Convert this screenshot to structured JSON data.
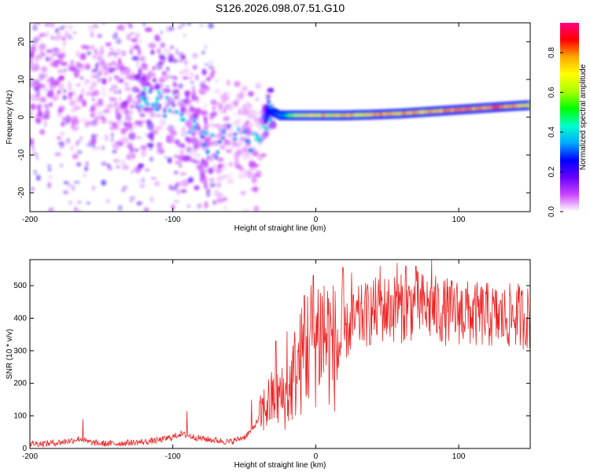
{
  "title": "S126.2026.098.07.51.G10",
  "chart_data": [
    {
      "type": "heatmap",
      "xlabel": "Height of straight line (km)",
      "ylabel": "Frequency (Hz)",
      "xlim": [
        -200,
        150
      ],
      "ylim": [
        -25,
        25
      ],
      "xticks": [
        -200,
        -100,
        0,
        100
      ],
      "yticks": [
        -20,
        -10,
        0,
        10,
        20
      ],
      "colorbar": {
        "label": "Normalized spectral amplitude",
        "range": [
          0,
          0.95
        ],
        "ticks": [
          "0.0",
          "0.2",
          "0.4",
          "0.6",
          "0.8"
        ],
        "colormap": [
          "#ffffff",
          "#cc44ff",
          "#6600ff",
          "#0000ff",
          "#00aaff",
          "#00ffcc",
          "#00ff00",
          "#aaff00",
          "#ffff00",
          "#ffaa00",
          "#ff0000",
          "#ff0080"
        ]
      },
      "ridge": {
        "x": [
          -200,
          -180,
          -160,
          -140,
          -120,
          -110,
          -100,
          -90,
          -80,
          -70,
          -60,
          -50,
          -40,
          -33,
          -25,
          -15,
          0,
          20,
          40,
          60,
          80,
          100,
          120,
          140,
          150
        ],
        "y": [
          10,
          9,
          8,
          6,
          5,
          4,
          2,
          -2,
          -5,
          -8,
          -3,
          -5,
          -7,
          2,
          0.5,
          0.5,
          0.5,
          0.5,
          0.7,
          1,
          1.5,
          2,
          2.5,
          3,
          3.2
        ],
        "amplitude": [
          0.2,
          0.2,
          0.15,
          0.2,
          0.3,
          0.3,
          0.3,
          0.25,
          0.2,
          0.2,
          0.15,
          0.15,
          0.15,
          0.35,
          0.55,
          0.7,
          0.78,
          0.82,
          0.85,
          0.88,
          0.92,
          0.95,
          0.95,
          0.9,
          0.85
        ]
      }
    },
    {
      "type": "line",
      "xlabel": "Height of straight line (km)",
      "ylabel": "SNR (10 * v/v)",
      "xlim": [
        -200,
        150
      ],
      "ylim": [
        0,
        580
      ],
      "xticks": [
        -200,
        -100,
        0,
        100
      ],
      "yticks": [
        0,
        100,
        200,
        300,
        400,
        500
      ],
      "color": "#ee2222",
      "series": [
        {
          "name": "SNR",
          "x": [
            -200,
            -190,
            -180,
            -170,
            -165,
            -160,
            -150,
            -140,
            -130,
            -120,
            -110,
            -100,
            -95,
            -90,
            -80,
            -70,
            -60,
            -50,
            -45,
            -40,
            -35,
            -30,
            -25,
            -20,
            -15,
            -10,
            -5,
            0,
            5,
            10,
            15,
            20,
            25,
            30,
            40,
            50,
            60,
            70,
            80,
            90,
            100,
            110,
            120,
            130,
            140,
            150
          ],
          "y": [
            15,
            15,
            18,
            25,
            30,
            20,
            15,
            15,
            18,
            20,
            25,
            35,
            45,
            40,
            30,
            25,
            20,
            35,
            55,
            90,
            130,
            150,
            160,
            150,
            230,
            270,
            320,
            350,
            360,
            330,
            300,
            350,
            380,
            400,
            420,
            430,
            430,
            440,
            430,
            420,
            420,
            410,
            410,
            400,
            410,
            400
          ]
        }
      ],
      "spikes": {
        "x": [
          -163,
          -90,
          -45,
          -28,
          -20,
          -8,
          -2,
          12,
          25,
          45,
          57,
          63,
          70,
          81,
          105
        ],
        "y": [
          90,
          115,
          150,
          330,
          360,
          470,
          530,
          500,
          540,
          560,
          570,
          560,
          560,
          580,
          490
        ]
      }
    }
  ]
}
